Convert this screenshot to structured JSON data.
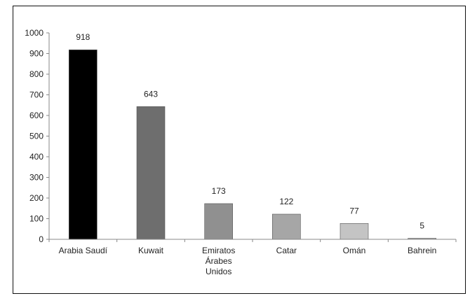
{
  "chart_data": {
    "type": "bar",
    "categories": [
      "Arabia Saudí",
      "Kuwait",
      "Emiratos Árabes Unidos",
      "Catar",
      "Omán",
      "Bahrein"
    ],
    "category_lines": [
      [
        "Arabia Saudí"
      ],
      [
        "Kuwait"
      ],
      [
        "Emiratos",
        "Árabes",
        "Unidos"
      ],
      [
        "Catar"
      ],
      [
        "Omán"
      ],
      [
        "Bahrein"
      ]
    ],
    "values": [
      918,
      643,
      173,
      122,
      77,
      5
    ],
    "colors": [
      "#000000",
      "#6e6e6e",
      "#909090",
      "#a6a6a6",
      "#c4c4c4",
      "#a8a8a8"
    ],
    "title": "",
    "xlabel": "",
    "ylabel": "",
    "ylim": [
      0,
      1000
    ],
    "yticks": [
      0,
      100,
      200,
      300,
      400,
      500,
      600,
      700,
      800,
      900,
      1000
    ],
    "grid": false,
    "legend": "none"
  }
}
